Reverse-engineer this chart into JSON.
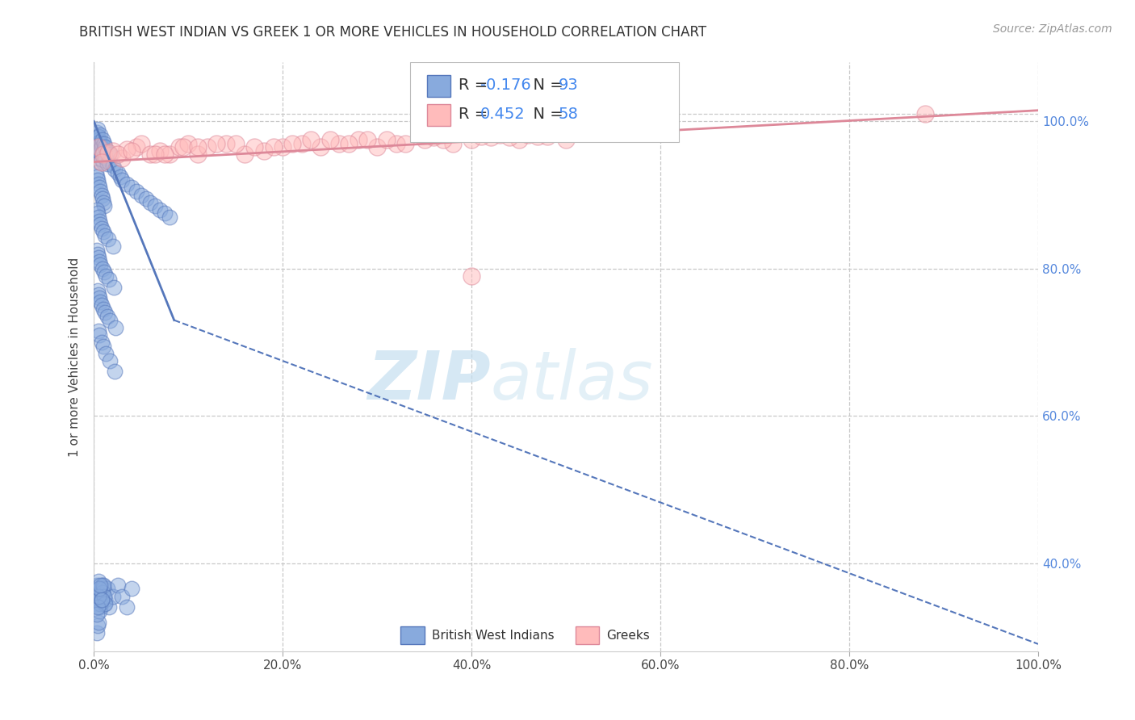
{
  "title": "BRITISH WEST INDIAN VS GREEK 1 OR MORE VEHICLES IN HOUSEHOLD CORRELATION CHART",
  "source": "Source: ZipAtlas.com",
  "ylabel": "1 or more Vehicles in Household",
  "xlim": [
    0.0,
    100.0
  ],
  "ylim": [
    28.0,
    108.0
  ],
  "yticks": [
    40.0,
    60.0,
    80.0,
    100.0
  ],
  "xticks": [
    0.0,
    20.0,
    40.0,
    60.0,
    80.0,
    100.0
  ],
  "xtick_labels": [
    "0.0%",
    "20.0%",
    "40.0%",
    "60.0%",
    "80.0%",
    "100.0%"
  ],
  "ytick_labels": [
    "40.0%",
    "60.0%",
    "80.0%",
    "100.0%"
  ],
  "background_color": "#ffffff",
  "grid_color": "#c8c8c8",
  "bwi_color": "#88aadd",
  "bwi_edge_color": "#5577bb",
  "greek_color": "#ffbbbb",
  "greek_edge_color": "#dd8899",
  "bwi_R": -0.176,
  "bwi_N": 93,
  "greek_R": 0.452,
  "greek_N": 58,
  "watermark_zip": "ZIP",
  "watermark_atlas": "atlas",
  "legend_label_bwi": "British West Indians",
  "legend_label_greek": "Greeks",
  "bwi_x": [
    0.2,
    0.3,
    0.3,
    0.4,
    0.4,
    0.4,
    0.5,
    0.5,
    0.5,
    0.6,
    0.6,
    0.6,
    0.7,
    0.7,
    0.7,
    0.8,
    0.8,
    0.8,
    0.9,
    0.9,
    1.0,
    1.0,
    1.1,
    1.1,
    1.2,
    1.3,
    1.4,
    1.5,
    1.6,
    1.8,
    2.0,
    2.2,
    2.5,
    2.8,
    3.0,
    3.5,
    4.0,
    4.5,
    5.0,
    5.5,
    6.0,
    6.5,
    7.0,
    7.5,
    8.0,
    0.2,
    0.3,
    0.4,
    0.5,
    0.6,
    0.7,
    0.8,
    0.9,
    1.0,
    1.1,
    0.3,
    0.4,
    0.5,
    0.6,
    0.7,
    0.8,
    1.0,
    1.2,
    1.5,
    2.0,
    0.3,
    0.4,
    0.5,
    0.6,
    0.7,
    0.9,
    1.1,
    1.3,
    1.6,
    2.1,
    0.4,
    0.5,
    0.6,
    0.7,
    0.8,
    1.0,
    1.2,
    1.4,
    1.7,
    2.3,
    0.5,
    0.6,
    0.8,
    1.0,
    1.3,
    1.7,
    2.2
  ],
  "bwi_y": [
    97.0,
    98.5,
    96.5,
    97.8,
    96.0,
    99.0,
    97.5,
    95.5,
    98.0,
    96.8,
    94.5,
    97.2,
    95.8,
    98.2,
    96.2,
    97.0,
    94.8,
    96.5,
    95.5,
    97.5,
    96.0,
    94.5,
    95.2,
    97.0,
    96.5,
    95.0,
    94.2,
    95.8,
    94.5,
    95.5,
    94.0,
    93.5,
    93.0,
    92.5,
    92.0,
    91.5,
    91.0,
    90.5,
    90.0,
    89.5,
    89.0,
    88.5,
    88.0,
    87.5,
    87.0,
    93.0,
    92.5,
    92.0,
    91.5,
    91.0,
    90.5,
    90.0,
    89.5,
    89.0,
    88.5,
    88.0,
    87.5,
    87.0,
    86.5,
    86.0,
    85.5,
    85.0,
    84.5,
    84.0,
    83.0,
    82.5,
    82.0,
    81.5,
    81.0,
    80.5,
    80.0,
    79.5,
    79.0,
    78.5,
    77.5,
    77.0,
    76.5,
    76.0,
    75.5,
    75.0,
    74.5,
    74.0,
    73.5,
    73.0,
    72.0,
    71.5,
    71.0,
    70.0,
    69.5,
    68.5,
    67.5,
    66.0
  ],
  "bwi_x_low": [
    0.2,
    0.3,
    0.3,
    0.4,
    0.5,
    0.5,
    0.6,
    0.7,
    0.8,
    0.9,
    1.0,
    1.1,
    1.2,
    1.4,
    1.6,
    2.0,
    2.5,
    3.0,
    3.5,
    4.0,
    0.3,
    0.4,
    0.5,
    0.6,
    0.7,
    0.8,
    0.9,
    1.0,
    1.1,
    1.2,
    0.3,
    0.4,
    0.5,
    0.6,
    0.7,
    0.8
  ],
  "bwi_y_low": [
    35.5,
    37.0,
    34.5,
    36.0,
    37.5,
    35.0,
    36.5,
    34.0,
    35.5,
    37.0,
    36.5,
    34.5,
    35.0,
    36.5,
    34.0,
    35.5,
    37.0,
    35.5,
    34.0,
    36.5,
    30.5,
    31.5,
    32.0,
    33.5,
    34.5,
    35.0,
    36.0,
    37.0,
    35.5,
    34.5,
    33.0,
    34.0,
    35.5,
    36.5,
    37.0,
    35.0
  ],
  "greek_x": [
    0.5,
    1.0,
    2.0,
    3.0,
    4.5,
    5.0,
    6.0,
    7.0,
    8.0,
    9.0,
    10.0,
    11.0,
    12.0,
    14.0,
    16.0,
    18.0,
    20.0,
    22.0,
    24.0,
    26.0,
    28.0,
    30.0,
    32.0,
    35.0,
    38.0,
    40.0,
    42.0,
    45.0,
    47.0,
    50.0,
    1.5,
    3.5,
    6.5,
    9.5,
    13.0,
    17.0,
    21.0,
    25.0,
    29.0,
    33.0,
    37.0,
    41.0,
    44.0,
    46.0,
    48.0,
    0.8,
    2.5,
    4.0,
    7.5,
    11.0,
    15.0,
    19.0,
    23.0,
    27.0,
    31.0,
    36.0,
    43.0,
    88.0
  ],
  "greek_y": [
    96.5,
    95.5,
    96.0,
    95.0,
    96.5,
    97.0,
    95.5,
    96.0,
    95.5,
    96.5,
    97.0,
    95.5,
    96.5,
    97.0,
    95.5,
    96.0,
    96.5,
    97.0,
    96.5,
    97.0,
    97.5,
    96.5,
    97.0,
    97.5,
    97.0,
    97.5,
    97.8,
    97.5,
    98.0,
    97.5,
    95.8,
    96.2,
    95.5,
    96.5,
    97.0,
    96.5,
    97.0,
    97.5,
    97.5,
    97.0,
    97.5,
    98.0,
    97.8,
    98.2,
    98.0,
    94.5,
    95.5,
    96.0,
    95.5,
    96.5,
    97.0,
    96.5,
    97.5,
    97.0,
    97.5,
    97.8,
    98.2,
    101.0
  ],
  "greek_special_x": [
    40.0
  ],
  "greek_special_y": [
    79.0
  ],
  "bwi_trendline_x0": 0.0,
  "bwi_trendline_y0": 100.0,
  "bwi_trendline_x1": 8.5,
  "bwi_trendline_y1": 73.0,
  "bwi_dash_x0": 8.5,
  "bwi_dash_y0": 73.0,
  "bwi_dash_x1": 100.0,
  "bwi_dash_y1": 29.0,
  "greek_trendline_x0": 0.0,
  "greek_trendline_y0": 94.5,
  "greek_trendline_x1": 100.0,
  "greek_trendline_y1": 101.5
}
